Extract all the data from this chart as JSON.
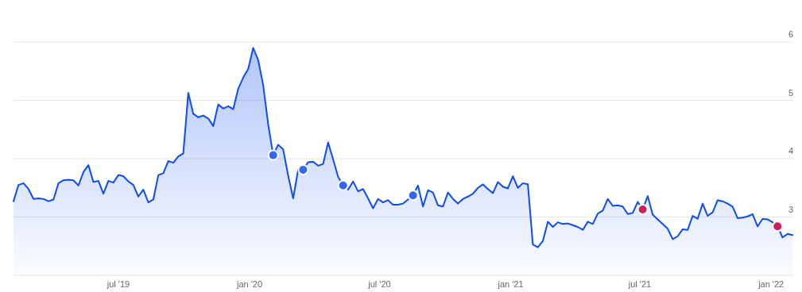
{
  "chart_data": {
    "type": "area",
    "x": [
      "2019-02-04",
      "2019-02-11",
      "2019-02-18",
      "2019-02-25",
      "2019-03-04",
      "2019-03-11",
      "2019-03-18",
      "2019-03-25",
      "2019-04-01",
      "2019-04-08",
      "2019-04-15",
      "2019-04-22",
      "2019-04-29",
      "2019-05-06",
      "2019-05-13",
      "2019-05-20",
      "2019-05-27",
      "2019-06-03",
      "2019-06-10",
      "2019-06-17",
      "2019-06-24",
      "2019-07-01",
      "2019-07-08",
      "2019-07-15",
      "2019-07-22",
      "2019-07-29",
      "2019-08-05",
      "2019-08-12",
      "2019-08-19",
      "2019-08-26",
      "2019-09-02",
      "2019-09-09",
      "2019-09-16",
      "2019-09-23",
      "2019-09-30",
      "2019-10-07",
      "2019-10-14",
      "2019-10-21",
      "2019-10-28",
      "2019-11-04",
      "2019-11-11",
      "2019-11-18",
      "2019-11-25",
      "2019-12-02",
      "2019-12-09",
      "2019-12-16",
      "2019-12-23",
      "2019-12-30",
      "2020-01-06",
      "2020-01-13",
      "2020-01-20",
      "2020-01-27",
      "2020-02-03",
      "2020-02-10",
      "2020-02-17",
      "2020-02-24",
      "2020-03-02",
      "2020-03-09",
      "2020-03-16",
      "2020-03-23",
      "2020-03-30",
      "2020-04-06",
      "2020-04-13",
      "2020-04-20",
      "2020-04-27",
      "2020-05-04",
      "2020-05-11",
      "2020-05-18",
      "2020-05-25",
      "2020-06-01",
      "2020-06-08",
      "2020-06-15",
      "2020-06-22",
      "2020-06-29",
      "2020-07-06",
      "2020-07-13",
      "2020-07-20",
      "2020-07-27",
      "2020-08-03",
      "2020-08-10",
      "2020-08-17",
      "2020-08-24",
      "2020-08-31",
      "2020-09-07",
      "2020-09-14",
      "2020-09-21",
      "2020-09-28",
      "2020-10-05",
      "2020-10-12",
      "2020-10-19",
      "2020-10-26",
      "2020-11-02",
      "2020-11-09",
      "2020-11-16",
      "2020-11-23",
      "2020-11-30",
      "2020-12-07",
      "2020-12-14",
      "2020-12-21",
      "2020-12-28",
      "2021-01-04",
      "2021-01-11",
      "2021-01-18",
      "2021-01-25",
      "2021-02-01",
      "2021-02-08",
      "2021-02-15",
      "2021-02-22",
      "2021-03-01",
      "2021-03-08",
      "2021-03-15",
      "2021-03-22",
      "2021-03-29",
      "2021-04-05",
      "2021-04-12",
      "2021-04-19",
      "2021-04-26",
      "2021-05-03",
      "2021-05-10",
      "2021-05-17",
      "2021-05-24",
      "2021-05-31",
      "2021-06-07",
      "2021-06-14",
      "2021-06-21",
      "2021-06-28",
      "2021-07-05",
      "2021-07-12",
      "2021-07-19",
      "2021-07-26",
      "2021-08-02",
      "2021-08-09",
      "2021-08-16",
      "2021-08-23",
      "2021-08-30",
      "2021-09-06",
      "2021-09-13",
      "2021-09-20",
      "2021-09-27",
      "2021-10-04",
      "2021-10-11",
      "2021-10-18",
      "2021-10-25",
      "2021-11-01",
      "2021-11-08",
      "2021-11-15",
      "2021-11-22",
      "2021-11-29",
      "2021-12-06",
      "2021-12-13",
      "2021-12-20",
      "2021-12-27",
      "2022-01-03",
      "2022-01-10",
      "2022-01-17",
      "2022-01-24",
      "2022-01-31"
    ],
    "series": [
      {
        "color": "#0d4cf2",
        "values": [
          3.27,
          3.55,
          3.58,
          3.48,
          3.31,
          3.32,
          3.31,
          3.27,
          3.3,
          3.58,
          3.63,
          3.64,
          3.63,
          3.54,
          3.77,
          3.89,
          3.6,
          3.62,
          3.4,
          3.62,
          3.59,
          3.72,
          3.7,
          3.61,
          3.55,
          3.35,
          3.47,
          3.25,
          3.3,
          3.72,
          3.75,
          3.96,
          3.93,
          4.04,
          4.09,
          5.13,
          4.77,
          4.71,
          4.74,
          4.69,
          4.56,
          4.93,
          4.86,
          4.9,
          4.85,
          5.2,
          5.39,
          5.54,
          5.9,
          5.69,
          5.26,
          4.59,
          4.06,
          4.24,
          4.16,
          3.71,
          3.32,
          3.81,
          3.81,
          3.94,
          3.95,
          3.88,
          3.91,
          4.28,
          3.99,
          3.69,
          3.54,
          3.47,
          3.61,
          3.44,
          3.48,
          3.32,
          3.15,
          3.31,
          3.25,
          3.29,
          3.21,
          3.21,
          3.23,
          3.3,
          3.37,
          3.54,
          3.18,
          3.46,
          3.42,
          3.2,
          3.18,
          3.42,
          3.31,
          3.23,
          3.31,
          3.35,
          3.4,
          3.5,
          3.56,
          3.48,
          3.41,
          3.6,
          3.52,
          3.49,
          3.7,
          3.5,
          3.58,
          3.56,
          2.53,
          2.48,
          2.59,
          2.92,
          2.83,
          2.91,
          2.88,
          2.89,
          2.86,
          2.83,
          2.78,
          2.92,
          2.88,
          3.06,
          3.11,
          3.31,
          3.19,
          3.2,
          3.18,
          3.05,
          3.07,
          3.26,
          3.13,
          3.36,
          3.04,
          2.96,
          2.88,
          2.8,
          2.62,
          2.67,
          2.79,
          2.78,
          3.02,
          2.97,
          3.23,
          3.02,
          3.08,
          3.29,
          3.27,
          3.23,
          3.18,
          2.98,
          2.99,
          3.01,
          3.05,
          2.84,
          2.97,
          2.96,
          2.91,
          2.84,
          2.65,
          2.71,
          2.69
        ]
      },
      {
        "type": "scatter",
        "marker": "circle",
        "color": "#3367f0",
        "x": [
          "2020-02-03",
          "2020-03-16",
          "2020-05-11",
          "2020-08-17"
        ],
        "values": [
          4.06,
          3.81,
          3.54,
          3.37
        ]
      },
      {
        "type": "scatter",
        "marker": "circle",
        "color": "#cc1d5e",
        "x": [
          "2021-07-05",
          "2022-01-10"
        ],
        "values": [
          3.13,
          2.84
        ]
      }
    ],
    "xlim": [
      "2019-02-04",
      "2022-02-01"
    ],
    "xticks": [
      {
        "value": "2019-07-01",
        "label": "jul '19"
      },
      {
        "value": "2020-01-01",
        "label": "jan '20"
      },
      {
        "value": "2020-07-01",
        "label": "jul '20"
      },
      {
        "value": "2021-01-01",
        "label": "jan '21"
      },
      {
        "value": "2021-07-01",
        "label": "jul '21"
      },
      {
        "value": "2022-01-01",
        "label": "jan '22"
      }
    ],
    "ylim": [
      2,
      6
    ],
    "yticks": [
      3,
      4,
      5,
      6
    ],
    "grid": "y"
  }
}
